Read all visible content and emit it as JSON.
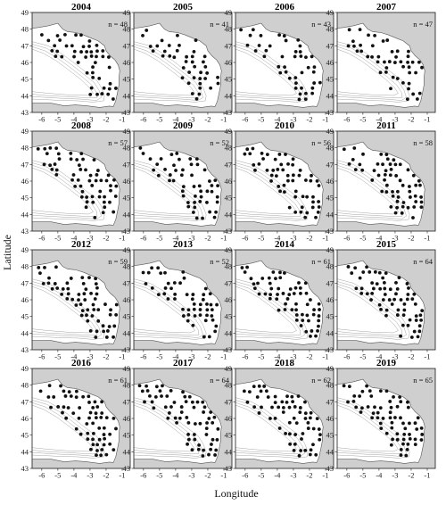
{
  "chart_data": {
    "type": "scatter",
    "xlabel": "Longitude",
    "ylabel": "Latitude",
    "xlim": [
      -6.6,
      -0.5
    ],
    "ylim": [
      43,
      49
    ],
    "xticks": [
      -6,
      -5,
      -4,
      -3,
      -2,
      -1
    ],
    "yticks": [
      43,
      44,
      45,
      46,
      47,
      48,
      49
    ],
    "colors": {
      "land": "#cfcfcf",
      "sea": "#ffffff",
      "stations": "#111111",
      "isobaths": "#9a9a9a"
    },
    "panels": [
      {
        "title": "2004",
        "n_label": "n = 48",
        "n": 48
      },
      {
        "title": "2005",
        "n_label": "n = 41",
        "n": 41
      },
      {
        "title": "2006",
        "n_label": "n = 43",
        "n": 43
      },
      {
        "title": "2007",
        "n_label": "n = 47",
        "n": 47
      },
      {
        "title": "2008",
        "n_label": "n = 57",
        "n": 57
      },
      {
        "title": "2009",
        "n_label": "n = 52",
        "n": 52
      },
      {
        "title": "2010",
        "n_label": "n = 56",
        "n": 56
      },
      {
        "title": "2011",
        "n_label": "n = 58",
        "n": 58
      },
      {
        "title": "2012",
        "n_label": "n = 59",
        "n": 59
      },
      {
        "title": "2013",
        "n_label": "n = 52",
        "n": 52
      },
      {
        "title": "2014",
        "n_label": "n = 61",
        "n": 61
      },
      {
        "title": "2015",
        "n_label": "n = 64",
        "n": 64
      },
      {
        "title": "2016",
        "n_label": "n = 61",
        "n": 61
      },
      {
        "title": "2017",
        "n_label": "n = 64",
        "n": 64
      },
      {
        "title": "2018",
        "n_label": "n = 62",
        "n": 62
      },
      {
        "title": "2019",
        "n_label": "n = 65",
        "n": 65
      }
    ]
  }
}
